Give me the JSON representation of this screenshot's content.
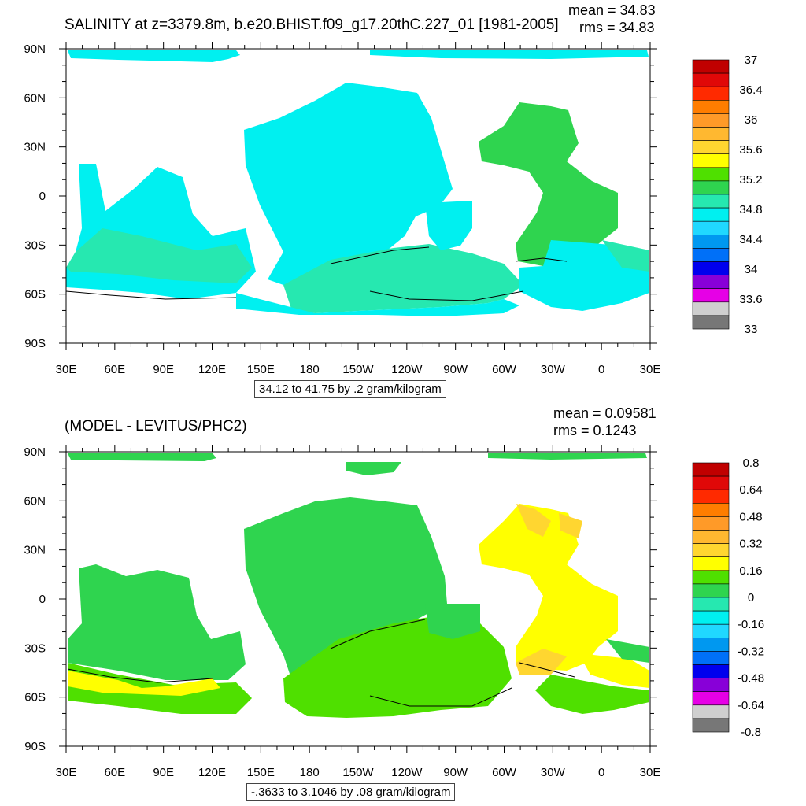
{
  "chart_data": [
    {
      "type": "heatmap",
      "title": "SALINITY at z=3379.8m, b.e20.BHIST.f09_g17.20thC.227_01 [1981-2005]",
      "stats": {
        "mean": "mean = 34.83",
        "rms": "rms = 34.83"
      },
      "x_ticks": [
        "30E",
        "60E",
        "90E",
        "120E",
        "150E",
        "180",
        "150W",
        "120W",
        "90W",
        "60W",
        "30W",
        "0",
        "30E"
      ],
      "y_ticks": [
        "90N",
        "60N",
        "30N",
        "0",
        "30S",
        "60S",
        "90S"
      ],
      "xlim": [
        30,
        390
      ],
      "ylim": [
        -90,
        90
      ],
      "range_note": "34.12 to 41.75 by .2 gram/kilogram",
      "colorbar": {
        "labels": [
          "37",
          "36.4",
          "36",
          "35.6",
          "35.2",
          "34.8",
          "34.4",
          "34",
          "33.6",
          "33"
        ],
        "colors": [
          "#c00000",
          "#e00808",
          "#ff2a00",
          "#ff7d00",
          "#ff9a28",
          "#ffb830",
          "#ffd630",
          "#ffff00",
          "#4fe000",
          "#2fd44f",
          "#26e8b0",
          "#00f0f0",
          "#20d8ff",
          "#0098f0",
          "#0070f8",
          "#0000ee",
          "#8800d8",
          "#e600e6",
          "#cfcfcf",
          "#777777"
        ]
      }
    },
    {
      "type": "heatmap",
      "title": "(MODEL - LEVITUS/PHC2)",
      "stats": {
        "mean": "mean = 0.09581",
        "rms": "rms = 0.1243"
      },
      "x_ticks": [
        "30E",
        "60E",
        "90E",
        "120E",
        "150E",
        "180",
        "150W",
        "120W",
        "90W",
        "60W",
        "30W",
        "0",
        "30E"
      ],
      "y_ticks": [
        "90N",
        "60N",
        "30N",
        "0",
        "30S",
        "60S",
        "90S"
      ],
      "xlim": [
        30,
        390
      ],
      "ylim": [
        -90,
        90
      ],
      "range_note": "-.3633 to 3.1046 by .08 gram/kilogram",
      "colorbar": {
        "labels": [
          "0.8",
          "0.64",
          "0.48",
          "0.32",
          "0.16",
          "0",
          "-0.16",
          "-0.32",
          "-0.48",
          "-0.64",
          "-0.8"
        ],
        "colors": [
          "#c00000",
          "#e00808",
          "#ff2a00",
          "#ff7d00",
          "#ff9a28",
          "#ffb830",
          "#ffd630",
          "#ffff00",
          "#4fe000",
          "#2fd44f",
          "#26e8b0",
          "#00f0f0",
          "#20d8ff",
          "#0098f0",
          "#0070f8",
          "#0000ee",
          "#8800d8",
          "#e600e6",
          "#cfcfcf",
          "#777777"
        ]
      }
    }
  ]
}
